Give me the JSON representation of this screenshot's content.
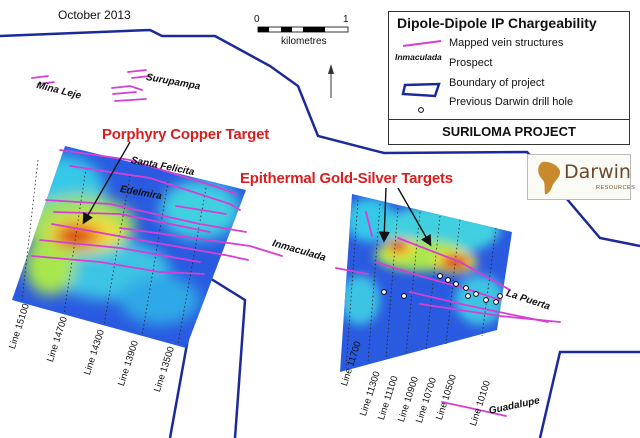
{
  "date": "October 2013",
  "scale_bar": {
    "start": "0",
    "end": "1",
    "unit": "kilometres"
  },
  "legend": {
    "title": "Dipole-Dipole IP Chargeability",
    "items": [
      {
        "symbol": "vein",
        "label": "Mapped vein structures"
      },
      {
        "symbol": "Inmaculada",
        "label": "Prospect"
      },
      {
        "symbol": "boundary",
        "label": "Boundary of project"
      },
      {
        "symbol": "drillhole",
        "label": "Previous Darwin drill hole"
      }
    ],
    "project": "SURILOMA PROJECT"
  },
  "logo": {
    "brand": "Darwin",
    "sub": "RESOURCES"
  },
  "targets": {
    "porphyry": "Porphyry Copper Target",
    "epithermal": "Epithermal Gold-Silver Targets"
  },
  "prospects": {
    "mina_leje": "Mina Leje",
    "surupampa": "Surupampa",
    "santa_felicita": "Santa Felicita",
    "edelmira": "Edelmira",
    "inmaculada": "Inmaculada",
    "la_puerta": "La Puerta",
    "guadalupe": "Guadalupe"
  },
  "lines_west": [
    "Line 15100",
    "Line 14700",
    "Line 14300",
    "Line 13900",
    "Line 13500"
  ],
  "lines_east": [
    "Line 11700",
    "Line 11300",
    "Line 11100",
    "Line 10900",
    "Line 10700",
    "Line 10500",
    "Line 10100"
  ],
  "colors": {
    "vein": "#d63fd6",
    "boundary": "#1a2a99",
    "target_text": "#d81f1f",
    "ip_low": "#1f4fd8",
    "ip_high": "#d81010"
  }
}
